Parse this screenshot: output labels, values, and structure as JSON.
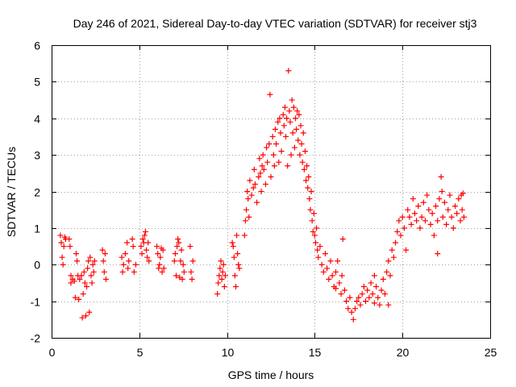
{
  "chart_data": {
    "type": "scatter",
    "title": "Day 246 of 2021, Sidereal Day-to-day VTEC variation (SDTVAR) for receiver stj3",
    "xlabel": "GPS time / hours",
    "ylabel": "SDTVAR / TECUs",
    "xlim": [
      0,
      25
    ],
    "ylim": [
      -2,
      6
    ],
    "xticks": [
      0,
      5,
      10,
      15,
      20,
      25
    ],
    "yticks": [
      -2,
      -1,
      0,
      1,
      2,
      3,
      4,
      5,
      6
    ],
    "grid": true,
    "marker": "+",
    "series": [
      {
        "name": "SDTVAR",
        "color": "#ff0000",
        "points": [
          [
            0.5,
            0.8
          ],
          [
            0.55,
            0.6
          ],
          [
            0.6,
            0.2
          ],
          [
            0.65,
            0.0
          ],
          [
            0.7,
            0.5
          ],
          [
            0.75,
            0.75
          ],
          [
            0.8,
            0.7
          ],
          [
            1.0,
            0.7
          ],
          [
            1.05,
            0.5
          ],
          [
            1.1,
            -0.3
          ],
          [
            1.1,
            -0.5
          ],
          [
            1.2,
            -0.4
          ],
          [
            1.3,
            -0.45
          ],
          [
            1.35,
            -0.9
          ],
          [
            1.4,
            0.3
          ],
          [
            1.45,
            0.1
          ],
          [
            1.5,
            -0.3
          ],
          [
            1.55,
            -0.95
          ],
          [
            1.6,
            -0.4
          ],
          [
            1.7,
            -0.3
          ],
          [
            1.75,
            -1.45
          ],
          [
            1.8,
            -0.8
          ],
          [
            1.85,
            -0.2
          ],
          [
            1.9,
            -0.5
          ],
          [
            1.95,
            -1.4
          ],
          [
            2.0,
            -0.6
          ],
          [
            2.05,
            -0.1
          ],
          [
            2.1,
            0.1
          ],
          [
            2.15,
            -1.3
          ],
          [
            2.2,
            0.2
          ],
          [
            2.25,
            -0.3
          ],
          [
            2.3,
            -0.5
          ],
          [
            2.35,
            0.0
          ],
          [
            2.4,
            -0.2
          ],
          [
            2.45,
            0.1
          ],
          [
            2.9,
            0.4
          ],
          [
            2.95,
            0.1
          ],
          [
            3.0,
            -0.2
          ],
          [
            3.05,
            0.3
          ],
          [
            3.1,
            -0.4
          ],
          [
            4.0,
            0.2
          ],
          [
            4.05,
            -0.2
          ],
          [
            4.1,
            0.0
          ],
          [
            4.2,
            0.3
          ],
          [
            4.3,
            0.6
          ],
          [
            4.35,
            -0.1
          ],
          [
            4.4,
            0.1
          ],
          [
            4.6,
            0.7
          ],
          [
            4.65,
            0.5
          ],
          [
            4.7,
            -0.2
          ],
          [
            4.8,
            0.0
          ],
          [
            5.1,
            0.5
          ],
          [
            5.15,
            0.3
          ],
          [
            5.2,
            0.7
          ],
          [
            5.25,
            0.6
          ],
          [
            5.3,
            0.8
          ],
          [
            5.35,
            0.9
          ],
          [
            5.4,
            0.4
          ],
          [
            5.45,
            0.2
          ],
          [
            5.5,
            0.6
          ],
          [
            5.55,
            0.1
          ],
          [
            6.0,
            0.5
          ],
          [
            6.05,
            0.3
          ],
          [
            6.1,
            -0.1
          ],
          [
            6.15,
            0.0
          ],
          [
            6.2,
            0.2
          ],
          [
            6.25,
            0.45
          ],
          [
            6.3,
            -0.2
          ],
          [
            6.35,
            0.4
          ],
          [
            6.4,
            -0.1
          ],
          [
            7.0,
            0.1
          ],
          [
            7.05,
            0.3
          ],
          [
            7.1,
            -0.3
          ],
          [
            7.15,
            0.5
          ],
          [
            7.2,
            0.7
          ],
          [
            7.25,
            0.6
          ],
          [
            7.3,
            -0.35
          ],
          [
            7.35,
            0.1
          ],
          [
            7.4,
            0.4
          ],
          [
            7.45,
            -0.4
          ],
          [
            7.5,
            0.0
          ],
          [
            7.55,
            -0.2
          ],
          [
            7.9,
            0.5
          ],
          [
            7.95,
            -0.2
          ],
          [
            8.0,
            -0.4
          ],
          [
            8.05,
            0.1
          ],
          [
            9.45,
            -0.8
          ],
          [
            9.5,
            -0.5
          ],
          [
            9.55,
            -0.3
          ],
          [
            9.6,
            -0.1
          ],
          [
            9.65,
            0.1
          ],
          [
            9.7,
            -0.4
          ],
          [
            9.75,
            -0.2
          ],
          [
            9.8,
            0.0
          ],
          [
            9.85,
            -0.6
          ],
          [
            9.9,
            -0.3
          ],
          [
            10.3,
            0.6
          ],
          [
            10.35,
            0.5
          ],
          [
            10.4,
            0.2
          ],
          [
            10.45,
            -0.3
          ],
          [
            10.5,
            -0.6
          ],
          [
            10.55,
            0.8
          ],
          [
            10.6,
            0.3
          ],
          [
            10.65,
            0.0
          ],
          [
            10.7,
            -0.1
          ],
          [
            11.0,
            0.8
          ],
          [
            11.05,
            1.2
          ],
          [
            11.1,
            1.5
          ],
          [
            11.15,
            2.0
          ],
          [
            11.2,
            1.8
          ],
          [
            11.25,
            1.3
          ],
          [
            11.3,
            2.3
          ],
          [
            11.4,
            1.9
          ],
          [
            11.5,
            2.1
          ],
          [
            11.55,
            2.6
          ],
          [
            11.6,
            2.2
          ],
          [
            11.7,
            1.7
          ],
          [
            11.8,
            2.4
          ],
          [
            11.85,
            2.9
          ],
          [
            11.9,
            2.5
          ],
          [
            11.95,
            2.0
          ],
          [
            12.0,
            2.7
          ],
          [
            12.05,
            3.0
          ],
          [
            12.1,
            2.6
          ],
          [
            12.2,
            2.2
          ],
          [
            12.25,
            3.2
          ],
          [
            12.3,
            2.8
          ],
          [
            12.4,
            3.3
          ],
          [
            12.45,
            4.65
          ],
          [
            12.5,
            2.4
          ],
          [
            12.6,
            3.5
          ],
          [
            12.65,
            3.0
          ],
          [
            12.7,
            2.7
          ],
          [
            12.75,
            3.7
          ],
          [
            12.8,
            3.3
          ],
          [
            12.9,
            3.9
          ],
          [
            12.95,
            2.8
          ],
          [
            13.0,
            4.0
          ],
          [
            13.05,
            3.6
          ],
          [
            13.1,
            3.1
          ],
          [
            13.2,
            4.1
          ],
          [
            13.25,
            3.8
          ],
          [
            13.3,
            4.3
          ],
          [
            13.35,
            3.5
          ],
          [
            13.4,
            4.0
          ],
          [
            13.45,
            2.7
          ],
          [
            13.5,
            5.3
          ],
          [
            13.55,
            4.2
          ],
          [
            13.6,
            3.9
          ],
          [
            13.65,
            3.0
          ],
          [
            13.7,
            4.5
          ],
          [
            13.75,
            3.6
          ],
          [
            13.8,
            4.3
          ],
          [
            13.85,
            3.2
          ],
          [
            13.9,
            4.0
          ],
          [
            13.95,
            3.7
          ],
          [
            14.0,
            4.2
          ],
          [
            14.05,
            3.4
          ],
          [
            14.1,
            4.1
          ],
          [
            14.15,
            3.0
          ],
          [
            14.2,
            3.8
          ],
          [
            14.25,
            3.3
          ],
          [
            14.3,
            2.8
          ],
          [
            14.35,
            3.6
          ],
          [
            14.4,
            2.6
          ],
          [
            14.45,
            3.1
          ],
          [
            14.5,
            2.3
          ],
          [
            14.55,
            2.7
          ],
          [
            14.6,
            2.1
          ],
          [
            14.65,
            2.4
          ],
          [
            14.7,
            1.8
          ],
          [
            14.75,
            1.5
          ],
          [
            14.8,
            2.0
          ],
          [
            14.85,
            1.2
          ],
          [
            14.9,
            0.9
          ],
          [
            14.95,
            1.4
          ],
          [
            15.0,
            0.8
          ],
          [
            15.05,
            0.6
          ],
          [
            15.1,
            1.0
          ],
          [
            15.15,
            0.4
          ],
          [
            15.2,
            0.2
          ],
          [
            15.3,
            0.5
          ],
          [
            15.4,
            0.0
          ],
          [
            15.5,
            -0.2
          ],
          [
            15.6,
            0.3
          ],
          [
            15.7,
            -0.1
          ],
          [
            15.8,
            -0.4
          ],
          [
            15.9,
            0.1
          ],
          [
            16.0,
            -0.3
          ],
          [
            16.1,
            -0.6
          ],
          [
            16.2,
            -0.2
          ],
          [
            16.3,
            0.1
          ],
          [
            16.4,
            -0.5
          ],
          [
            16.5,
            -0.8
          ],
          [
            16.55,
            -0.3
          ],
          [
            16.6,
            0.7
          ],
          [
            16.7,
            -0.7
          ],
          [
            16.8,
            -1.0
          ],
          [
            16.9,
            -1.2
          ],
          [
            17.0,
            -0.9
          ],
          [
            17.1,
            -1.3
          ],
          [
            17.2,
            -1.5
          ],
          [
            17.3,
            -1.2
          ],
          [
            17.4,
            -1.0
          ],
          [
            17.5,
            -0.9
          ],
          [
            17.6,
            -1.1
          ],
          [
            17.7,
            -0.8
          ],
          [
            17.8,
            -0.6
          ],
          [
            17.9,
            -1.0
          ],
          [
            18.0,
            -0.7
          ],
          [
            18.1,
            -0.9
          ],
          [
            18.2,
            -0.5
          ],
          [
            18.3,
            -0.8
          ],
          [
            18.4,
            -0.3
          ],
          [
            18.5,
            -0.6
          ],
          [
            18.6,
            -0.9
          ],
          [
            18.7,
            -1.1
          ],
          [
            18.8,
            -0.7
          ],
          [
            18.9,
            -0.4
          ],
          [
            19.0,
            -0.8
          ],
          [
            19.1,
            -0.2
          ],
          [
            19.2,
            0.1
          ],
          [
            19.3,
            -0.3
          ],
          [
            19.4,
            0.4
          ],
          [
            19.5,
            0.2
          ],
          [
            19.6,
            0.6
          ],
          [
            19.7,
            0.9
          ],
          [
            19.8,
            1.2
          ],
          [
            19.9,
            0.8
          ],
          [
            20.0,
            1.3
          ],
          [
            20.1,
            1.0
          ],
          [
            20.2,
            0.4
          ],
          [
            20.3,
            1.5
          ],
          [
            20.4,
            1.3
          ],
          [
            20.5,
            1.1
          ],
          [
            20.6,
            1.8
          ],
          [
            20.7,
            1.4
          ],
          [
            20.8,
            1.2
          ],
          [
            20.9,
            1.6
          ],
          [
            21.0,
            1.0
          ],
          [
            21.1,
            1.3
          ],
          [
            21.2,
            1.7
          ],
          [
            21.3,
            1.2
          ],
          [
            21.4,
            1.9
          ],
          [
            21.5,
            1.5
          ],
          [
            21.6,
            1.1
          ],
          [
            21.7,
            1.4
          ],
          [
            21.8,
            0.8
          ],
          [
            21.9,
            1.6
          ],
          [
            22.0,
            1.2
          ],
          [
            22.1,
            1.8
          ],
          [
            22.2,
            2.4
          ],
          [
            22.25,
            2.0
          ],
          [
            22.3,
            1.3
          ],
          [
            22.4,
            1.7
          ],
          [
            22.5,
            1.1
          ],
          [
            22.6,
            1.5
          ],
          [
            22.7,
            1.9
          ],
          [
            22.8,
            1.3
          ],
          [
            22.9,
            1.0
          ],
          [
            23.0,
            1.6
          ],
          [
            23.1,
            1.4
          ],
          [
            23.2,
            1.8
          ],
          [
            23.3,
            1.2
          ],
          [
            23.35,
            1.9
          ],
          [
            23.4,
            1.5
          ],
          [
            23.45,
            1.95
          ],
          [
            23.5,
            1.3
          ],
          [
            22.0,
            0.3
          ],
          [
            19.2,
            -1.1
          ],
          [
            18.4,
            -1.05
          ],
          [
            16.2,
            -0.65
          ]
        ]
      }
    ]
  }
}
